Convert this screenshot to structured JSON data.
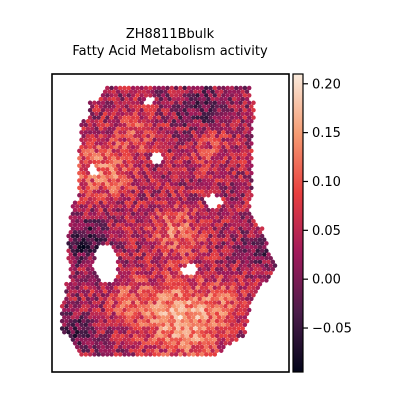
{
  "chart_data": {
    "type": "heatmap",
    "subtype": "spatial-hexbin",
    "title": "ZH8811Bbulk",
    "subtitle": "Fatty Acid Metabolism activity",
    "xlabel": "",
    "ylabel": "",
    "colormap": "rocket",
    "colormap_stops": [
      "#03051a",
      "#4c1d4b",
      "#a11a5b",
      "#e83f3f",
      "#f69c73",
      "#faebdd"
    ],
    "value_range": [
      -0.095,
      0.21
    ],
    "colorbar": {
      "ticks": [
        0.2,
        0.15,
        0.1,
        0.05,
        0.0,
        -0.05
      ],
      "tick_labels": [
        "0.20",
        "0.15",
        "0.10",
        "0.05",
        "0.00",
        "−0.05"
      ]
    },
    "grid": false,
    "legend": "colorbar-right",
    "tissue_regions_note": "spot values are estimated from color; higher activity concentrated in lower-middle and upper-left areas"
  }
}
